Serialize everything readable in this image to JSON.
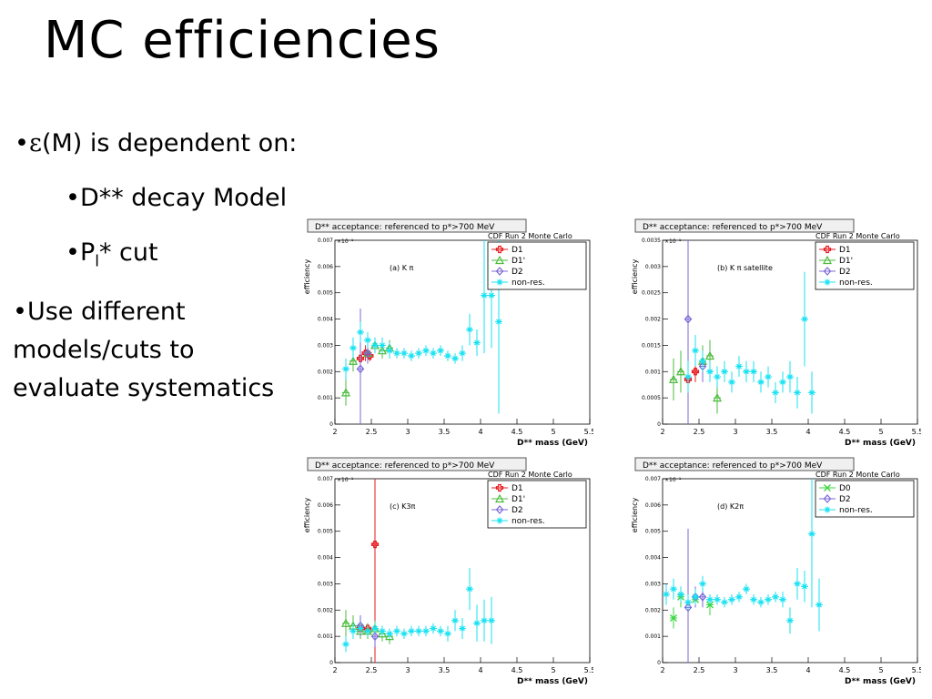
{
  "slide": {
    "title": "MC efficiencies",
    "bullets": {
      "b1_sym": "ε",
      "b1_text": "(M) is dependent on:",
      "b2_text": "D** decay Model",
      "b3_main": "P",
      "b3_sub": "l",
      "b3_rest": "* cut",
      "b4_line1": "Use different",
      "b4_line2": "models/cuts to",
      "b4_line3": "evaluate systematics"
    },
    "bullet_char": "•"
  },
  "colors": {
    "D1": "#e8191e",
    "D1p": "#4cbb3c",
    "D2": "#7a68d6",
    "nonres": "#19e2f2",
    "D0": "#38d63e"
  },
  "chart_data": [
    {
      "type": "scatter",
      "id": "a",
      "title": "D** acceptance: referenced to p*>700 MeV",
      "subtitle": "CDF Run 2 Monte Carlo",
      "annotation": "(a) K π",
      "xlabel": "D** mass (GeV)",
      "ylabel": "efficiency",
      "exponent_label": "×10⁻¹",
      "xlim": [
        2,
        5.5
      ],
      "ylim": [
        0,
        0.007
      ],
      "xticks": [
        "2",
        "2.5",
        "3",
        "3.5",
        "4",
        "4.5",
        "5",
        "5.5"
      ],
      "yticks": [
        "0",
        "0.001",
        "0.002",
        "0.003",
        "0.004",
        "0.005",
        "0.006",
        "0.007"
      ],
      "series": [
        {
          "name": "D1",
          "marker": "cross",
          "color": "#e8191e",
          "points": [
            [
              2.35,
              0.0025
            ],
            [
              2.42,
              0.0027
            ],
            [
              2.48,
              0.0026
            ]
          ],
          "err": [
            0.0002,
            0.0003,
            0.0002
          ]
        },
        {
          "name": "D1'",
          "marker": "triangle",
          "color": "#4cbb3c",
          "points": [
            [
              2.15,
              0.0012
            ],
            [
              2.25,
              0.0024
            ],
            [
              2.45,
              0.0027
            ],
            [
              2.55,
              0.003
            ],
            [
              2.65,
              0.0028
            ],
            [
              2.75,
              0.0029
            ]
          ],
          "err": [
            0.0005,
            0.0004,
            0.0003,
            0.0003,
            0.0003,
            0.0003
          ]
        },
        {
          "name": "D2",
          "marker": "diamond",
          "color": "#7a68d6",
          "points": [
            [
              2.35,
              0.0021
            ],
            [
              2.45,
              0.0027
            ]
          ],
          "err": [
            0.0023,
            0.0004
          ]
        },
        {
          "name": "non-res.",
          "marker": "star",
          "color": "#19e2f2",
          "points": [
            [
              2.15,
              0.0021
            ],
            [
              2.25,
              0.0029
            ],
            [
              2.35,
              0.0035
            ],
            [
              2.45,
              0.0032
            ],
            [
              2.55,
              0.003
            ],
            [
              2.65,
              0.003
            ],
            [
              2.75,
              0.0028
            ],
            [
              2.85,
              0.0027
            ],
            [
              2.95,
              0.0027
            ],
            [
              3.05,
              0.0026
            ],
            [
              3.15,
              0.0027
            ],
            [
              3.25,
              0.0028
            ],
            [
              3.35,
              0.0027
            ],
            [
              3.45,
              0.0028
            ],
            [
              3.55,
              0.0026
            ],
            [
              3.65,
              0.0025
            ],
            [
              3.75,
              0.0027
            ],
            [
              3.85,
              0.0036
            ],
            [
              3.95,
              0.0031
            ],
            [
              4.05,
              0.0049
            ],
            [
              4.15,
              0.0049
            ],
            [
              4.25,
              0.0039
            ]
          ],
          "err": [
            0.0004,
            0.0004,
            0.0004,
            0.0003,
            0.0003,
            0.0003,
            0.0003,
            0.0002,
            0.0002,
            0.0002,
            0.0002,
            0.0002,
            0.0002,
            0.0002,
            0.0002,
            0.0002,
            0.0003,
            0.0006,
            0.0005,
            0.0022,
            0.002,
            0.0035
          ]
        }
      ]
    },
    {
      "type": "scatter",
      "id": "b",
      "title": "D** acceptance: referenced to p*>700 MeV",
      "subtitle": "CDF Run 2 Monte Carlo",
      "annotation": "(b) K π satellite",
      "xlabel": "D** mass (GeV)",
      "ylabel": "efficiency",
      "exponent_label": "×10⁻¹",
      "xlim": [
        2,
        5.5
      ],
      "ylim": [
        0,
        0.0035
      ],
      "xticks": [
        "2",
        "2.5",
        "3",
        "3.5",
        "4",
        "4.5",
        "5",
        "5.5"
      ],
      "yticks": [
        "0",
        "0.0005",
        "0.001",
        "0.0015",
        "0.002",
        "0.0025",
        "0.003",
        "0.0035"
      ],
      "series": [
        {
          "name": "D1",
          "marker": "cross",
          "color": "#e8191e",
          "points": [
            [
              2.35,
              0.00085
            ],
            [
              2.45,
              0.001
            ]
          ],
          "err": [
            0.0002,
            0.0002
          ]
        },
        {
          "name": "D1'",
          "marker": "triangle",
          "color": "#4cbb3c",
          "points": [
            [
              2.15,
              0.00085
            ],
            [
              2.25,
              0.001
            ],
            [
              2.55,
              0.0012
            ],
            [
              2.65,
              0.0013
            ],
            [
              2.75,
              0.0005
            ]
          ],
          "err": [
            0.0004,
            0.0004,
            0.0003,
            0.0003,
            0.0003
          ]
        },
        {
          "name": "D2",
          "marker": "diamond",
          "color": "#7a68d6",
          "points": [
            [
              2.35,
              0.002
            ],
            [
              2.55,
              0.0011
            ]
          ],
          "err": [
            0.0035,
            0.0003
          ]
        },
        {
          "name": "non-res.",
          "marker": "star",
          "color": "#19e2f2",
          "points": [
            [
              2.35,
              0.0009
            ],
            [
              2.45,
              0.0014
            ],
            [
              2.55,
              0.0012
            ],
            [
              2.65,
              0.001
            ],
            [
              2.75,
              0.0009
            ],
            [
              2.85,
              0.001
            ],
            [
              2.95,
              0.0008
            ],
            [
              3.05,
              0.0011
            ],
            [
              3.15,
              0.001
            ],
            [
              3.25,
              0.001
            ],
            [
              3.35,
              0.0008
            ],
            [
              3.45,
              0.0009
            ],
            [
              3.55,
              0.0006
            ],
            [
              3.65,
              0.0008
            ],
            [
              3.75,
              0.0009
            ],
            [
              3.85,
              0.0006
            ],
            [
              3.95,
              0.002
            ],
            [
              4.05,
              0.0006
            ]
          ],
          "err": [
            0.0003,
            0.0003,
            0.0002,
            0.0002,
            0.0002,
            0.0002,
            0.0002,
            0.0002,
            0.0002,
            0.0002,
            0.0002,
            0.0002,
            0.0002,
            0.0002,
            0.0003,
            0.0003,
            0.0009,
            0.0004
          ]
        }
      ]
    },
    {
      "type": "scatter",
      "id": "c",
      "title": "D** acceptance: referenced to p*>700 MeV",
      "subtitle": "CDF Run 2 Monte Carlo",
      "annotation": "(c) K3π",
      "xlabel": "D** mass (GeV)",
      "ylabel": "efficiency",
      "exponent_label": "×10⁻¹",
      "xlim": [
        2,
        5.5
      ],
      "ylim": [
        0,
        0.007
      ],
      "xticks": [
        "2",
        "2.5",
        "3",
        "3.5",
        "4",
        "4.5",
        "5",
        "5.5"
      ],
      "yticks": [
        "0",
        "0.001",
        "0.002",
        "0.003",
        "0.004",
        "0.005",
        "0.006",
        "0.007"
      ],
      "series": [
        {
          "name": "D1",
          "marker": "cross",
          "color": "#e8191e",
          "points": [
            [
              2.35,
              0.0013
            ],
            [
              2.45,
              0.0013
            ],
            [
              2.55,
              0.0045
            ]
          ],
          "err": [
            0.0002,
            0.0002,
            0.0065
          ]
        },
        {
          "name": "D1'",
          "marker": "triangle",
          "color": "#4cbb3c",
          "points": [
            [
              2.15,
              0.0015
            ],
            [
              2.25,
              0.0014
            ],
            [
              2.35,
              0.0012
            ],
            [
              2.45,
              0.0012
            ],
            [
              2.55,
              0.0013
            ],
            [
              2.65,
              0.0011
            ],
            [
              2.75,
              0.001
            ]
          ],
          "err": [
            0.0005,
            0.0004,
            0.0003,
            0.0003,
            0.0003,
            0.0003,
            0.0003
          ]
        },
        {
          "name": "D2",
          "marker": "diamond",
          "color": "#7a68d6",
          "points": [
            [
              2.35,
              0.0014
            ],
            [
              2.55,
              0.001
            ]
          ],
          "err": [
            0.0004,
            0.0004
          ]
        },
        {
          "name": "non-res.",
          "marker": "star",
          "color": "#19e2f2",
          "points": [
            [
              2.15,
              0.0007
            ],
            [
              2.25,
              0.0012
            ],
            [
              2.35,
              0.0013
            ],
            [
              2.45,
              0.0012
            ],
            [
              2.55,
              0.0013
            ],
            [
              2.65,
              0.0012
            ],
            [
              2.75,
              0.0011
            ],
            [
              2.85,
              0.0012
            ],
            [
              2.95,
              0.0011
            ],
            [
              3.05,
              0.0012
            ],
            [
              3.15,
              0.0012
            ],
            [
              3.25,
              0.0012
            ],
            [
              3.35,
              0.0013
            ],
            [
              3.45,
              0.0012
            ],
            [
              3.55,
              0.0011
            ],
            [
              3.65,
              0.0016
            ],
            [
              3.75,
              0.0013
            ],
            [
              3.85,
              0.0028
            ],
            [
              3.95,
              0.0015
            ],
            [
              4.05,
              0.0016
            ],
            [
              4.15,
              0.0016
            ]
          ],
          "err": [
            0.0003,
            0.0003,
            0.0002,
            0.0002,
            0.0002,
            0.0002,
            0.0002,
            0.0002,
            0.0002,
            0.0002,
            0.0002,
            0.0002,
            0.0002,
            0.0002,
            0.0003,
            0.0004,
            0.0004,
            0.0008,
            0.0007,
            0.0008,
            0.0009
          ]
        }
      ]
    },
    {
      "type": "scatter",
      "id": "d",
      "title": "D** acceptance: referenced to p*>700 MeV",
      "subtitle": "CDF Run 2 Monte Carlo",
      "annotation": "(d) K2π",
      "xlabel": "D** mass (GeV)",
      "ylabel": "efficiency",
      "exponent_label": "×10⁻¹",
      "xlim": [
        2,
        5.5
      ],
      "ylim": [
        0,
        0.007
      ],
      "xticks": [
        "2",
        "2.5",
        "3",
        "3.5",
        "4",
        "4.5",
        "5",
        "5.5"
      ],
      "yticks": [
        "0",
        "0.001",
        "0.002",
        "0.003",
        "0.004",
        "0.005",
        "0.006",
        "0.007"
      ],
      "series": [
        {
          "name": "D0",
          "marker": "x",
          "color": "#38d63e",
          "points": [
            [
              2.15,
              0.0017
            ],
            [
              2.25,
              0.0025
            ],
            [
              2.45,
              0.0024
            ],
            [
              2.65,
              0.0022
            ]
          ],
          "err": [
            0.0004,
            0.0004,
            0.0003,
            0.0004
          ]
        },
        {
          "name": "D2",
          "marker": "diamond",
          "color": "#7a68d6",
          "points": [
            [
              2.35,
              0.0021
            ],
            [
              2.45,
              0.0025
            ],
            [
              2.55,
              0.0025
            ]
          ],
          "err": [
            0.003,
            0.0004,
            0.0004
          ]
        },
        {
          "name": "non-res.",
          "marker": "star",
          "color": "#19e2f2",
          "points": [
            [
              2.05,
              0.0026
            ],
            [
              2.15,
              0.0028
            ],
            [
              2.25,
              0.0026
            ],
            [
              2.35,
              0.0023
            ],
            [
              2.45,
              0.0025
            ],
            [
              2.55,
              0.003
            ],
            [
              2.65,
              0.0024
            ],
            [
              2.75,
              0.0024
            ],
            [
              2.85,
              0.0023
            ],
            [
              2.95,
              0.0024
            ],
            [
              3.05,
              0.0025
            ],
            [
              3.15,
              0.0028
            ],
            [
              3.25,
              0.0024
            ],
            [
              3.35,
              0.0023
            ],
            [
              3.45,
              0.0024
            ],
            [
              3.55,
              0.0025
            ],
            [
              3.65,
              0.0024
            ],
            [
              3.75,
              0.0016
            ],
            [
              3.85,
              0.003
            ],
            [
              3.95,
              0.0029
            ],
            [
              4.05,
              0.0049
            ],
            [
              4.15,
              0.0022
            ]
          ],
          "err": [
            0.0004,
            0.0004,
            0.0003,
            0.0003,
            0.0003,
            0.0003,
            0.0002,
            0.0002,
            0.0002,
            0.0002,
            0.0002,
            0.0002,
            0.0002,
            0.0002,
            0.0002,
            0.0002,
            0.0003,
            0.0005,
            0.0006,
            0.0006,
            0.0028,
            0.001
          ]
        }
      ]
    }
  ]
}
